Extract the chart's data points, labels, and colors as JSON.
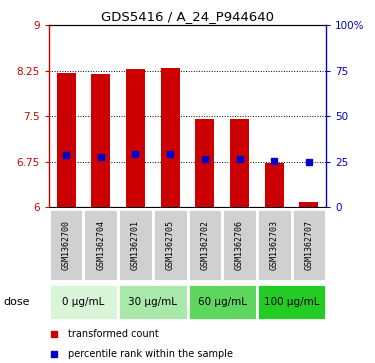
{
  "title": "GDS5416 / A_24_P944640",
  "samples": [
    "GSM1362700",
    "GSM1362704",
    "GSM1362701",
    "GSM1362705",
    "GSM1362702",
    "GSM1362706",
    "GSM1362703",
    "GSM1362707"
  ],
  "bar_tops": [
    8.22,
    8.2,
    8.28,
    8.3,
    7.45,
    7.45,
    6.72,
    6.08
  ],
  "bar_bottoms": [
    6.0,
    6.0,
    6.0,
    6.0,
    6.0,
    6.0,
    6.0,
    6.0
  ],
  "blue_values": [
    6.85,
    6.83,
    6.87,
    6.87,
    6.8,
    6.8,
    6.76,
    6.74
  ],
  "dose_groups": [
    {
      "label": "0 μg/mL",
      "start": 0,
      "end": 2,
      "color": "#d8f5d8"
    },
    {
      "label": "30 μg/mL",
      "start": 2,
      "end": 4,
      "color": "#a8e8a8"
    },
    {
      "label": "60 μg/mL",
      "start": 4,
      "end": 6,
      "color": "#5cd65c"
    },
    {
      "label": "100 μg/mL",
      "start": 6,
      "end": 8,
      "color": "#22cc22"
    }
  ],
  "ylim": [
    6.0,
    9.0
  ],
  "yticks": [
    6.0,
    6.75,
    7.5,
    8.25,
    9.0
  ],
  "ytick_labels": [
    "6",
    "6.75",
    "7.5",
    "8.25",
    "9"
  ],
  "right_yticks": [
    0,
    25,
    50,
    75,
    100
  ],
  "right_ytick_labels": [
    "0",
    "25",
    "50",
    "75",
    "100%"
  ],
  "bar_color": "#cc0000",
  "blue_color": "#0000cc",
  "bar_width": 0.55,
  "label_area_color": "#d0d0d0",
  "dose_label": "dose",
  "legend_red_label": "transformed count",
  "legend_blue_label": "percentile rank within the sample"
}
